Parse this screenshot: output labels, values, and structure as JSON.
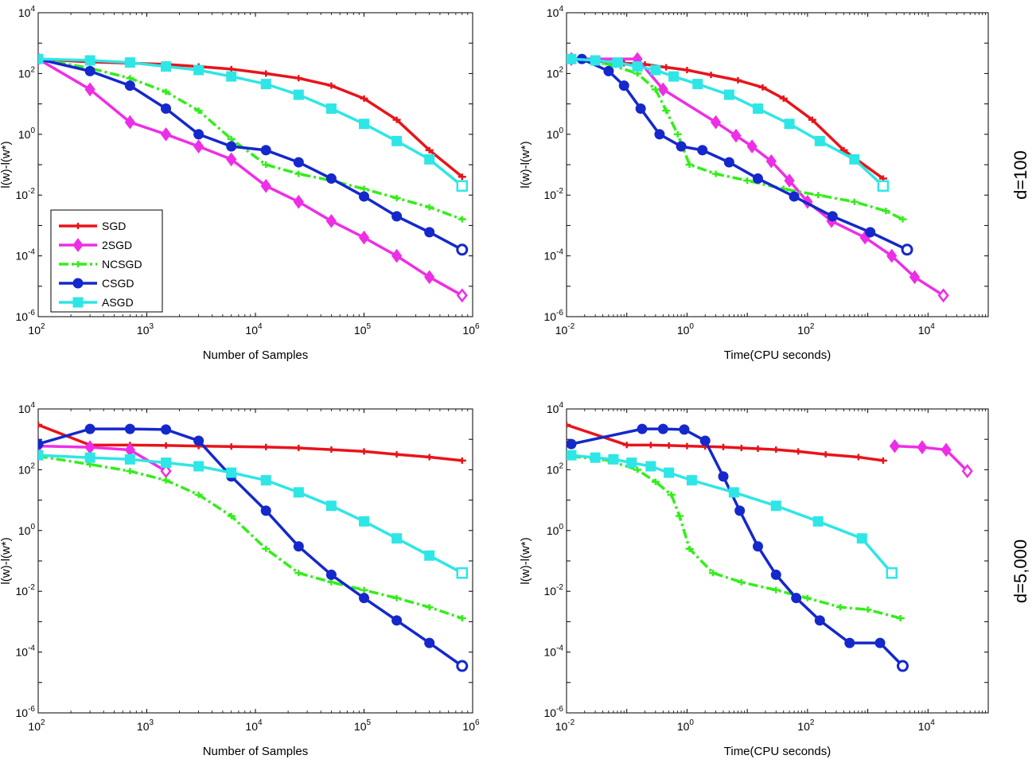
{
  "colors": {
    "SGD": "#e8141a",
    "2SGD": "#ee2ee6",
    "NCSGD": "#33ee1a",
    "CSGD": "#1428cc",
    "ASGD": "#2ee6e6"
  },
  "legend": [
    "SGD",
    "2SGD",
    "NCSGD",
    "CSGD",
    "ASGD"
  ],
  "row_labels": [
    "d=100",
    "d=5,000"
  ],
  "chart_data": [
    {
      "type": "line",
      "panel": "top-left",
      "xlabel": "Number of Samples",
      "ylabel": "l(w)-l(w*)",
      "xscale": "log",
      "yscale": "log",
      "xlim": [
        100,
        1000000
      ],
      "ylim": [
        1e-06,
        10000
      ],
      "legend": "lower-left",
      "series": [
        {
          "name": "SGD",
          "x": [
            100,
            300,
            700,
            1500,
            3000,
            6000,
            12500,
            25000,
            50000,
            100000,
            200000,
            400000,
            800000
          ],
          "y": [
            300,
            240,
            220,
            200,
            170,
            140,
            100,
            70,
            40,
            15,
            3,
            0.3,
            0.04
          ]
        },
        {
          "name": "2SGD",
          "x": [
            100,
            300,
            700,
            1500,
            3000,
            6000,
            12500,
            25000,
            50000,
            100000,
            200000,
            400000,
            800000
          ],
          "y": [
            300,
            30,
            2.5,
            1,
            0.4,
            0.15,
            0.02,
            0.006,
            0.0014,
            0.0004,
            0.0001,
            2e-05,
            5e-06
          ]
        },
        {
          "name": "NCSGD",
          "x": [
            100,
            300,
            700,
            1500,
            3000,
            6000,
            12500,
            25000,
            50000,
            100000,
            200000,
            400000,
            800000
          ],
          "y": [
            300,
            150,
            70,
            25,
            6,
            0.7,
            0.1,
            0.05,
            0.03,
            0.016,
            0.008,
            0.004,
            0.0016
          ]
        },
        {
          "name": "CSGD",
          "x": [
            100,
            300,
            700,
            1500,
            3000,
            6000,
            12500,
            25000,
            50000,
            100000,
            200000,
            400000,
            800000
          ],
          "y": [
            300,
            120,
            40,
            7,
            1,
            0.4,
            0.3,
            0.12,
            0.035,
            0.009,
            0.002,
            0.0006,
            0.00016
          ]
        },
        {
          "name": "ASGD",
          "x": [
            100,
            300,
            700,
            1500,
            3000,
            6000,
            12500,
            25000,
            50000,
            100000,
            200000,
            400000,
            800000
          ],
          "y": [
            300,
            270,
            230,
            170,
            130,
            80,
            45,
            20,
            7,
            2.2,
            0.6,
            0.15,
            0.02
          ]
        }
      ]
    },
    {
      "type": "line",
      "panel": "top-right",
      "xlabel": "Time(CPU seconds)",
      "ylabel": "l(w)-l(w*)",
      "xscale": "log",
      "yscale": "log",
      "xlim": [
        0.01,
        100000
      ],
      "ylim": [
        1e-06,
        10000
      ],
      "series": [
        {
          "name": "SGD",
          "x": [
            0.012,
            0.035,
            0.09,
            0.2,
            0.45,
            1,
            2.5,
            7,
            18,
            40,
            120,
            400,
            1800
          ],
          "y": [
            300,
            250,
            220,
            200,
            160,
            130,
            90,
            60,
            35,
            15,
            3,
            0.3,
            0.035
          ]
        },
        {
          "name": "2SGD",
          "x": [
            0.012,
            0.15,
            0.4,
            3,
            6.5,
            12,
            25,
            50,
            100,
            250,
            900,
            2500,
            6000,
            18000
          ],
          "y": [
            300,
            300,
            30,
            2.5,
            0.9,
            0.4,
            0.13,
            0.03,
            0.006,
            0.0014,
            0.0004,
            0.0001,
            2e-05,
            5e-06
          ]
        },
        {
          "name": "NCSGD",
          "x": [
            0.012,
            0.05,
            0.15,
            0.3,
            0.45,
            0.7,
            1.1,
            3,
            10,
            40,
            150,
            600,
            2000,
            3800
          ],
          "y": [
            300,
            200,
            100,
            30,
            6,
            1,
            0.1,
            0.05,
            0.03,
            0.016,
            0.01,
            0.006,
            0.003,
            0.0016
          ]
        },
        {
          "name": "CSGD",
          "x": [
            0.018,
            0.05,
            0.09,
            0.17,
            0.35,
            0.8,
            1.8,
            5,
            15,
            60,
            260,
            1100,
            4500
          ],
          "y": [
            300,
            120,
            40,
            7,
            1,
            0.4,
            0.3,
            0.12,
            0.035,
            0.009,
            0.002,
            0.0006,
            0.00016
          ]
        },
        {
          "name": "ASGD",
          "x": [
            0.012,
            0.03,
            0.07,
            0.15,
            0.3,
            0.6,
            1.5,
            5,
            15,
            50,
            160,
            600,
            1800
          ],
          "y": [
            300,
            270,
            230,
            170,
            130,
            80,
            45,
            20,
            7,
            2.2,
            0.6,
            0.15,
            0.02
          ]
        }
      ]
    },
    {
      "type": "line",
      "panel": "bottom-left",
      "xlabel": "Number of Samples",
      "ylabel": "l(w)-l(w*)",
      "xscale": "log",
      "yscale": "log",
      "xlim": [
        100,
        1000000
      ],
      "ylim": [
        1e-06,
        10000
      ],
      "series": [
        {
          "name": "SGD",
          "x": [
            100,
            300,
            700,
            1500,
            3000,
            6000,
            12500,
            25000,
            50000,
            100000,
            200000,
            400000,
            800000
          ],
          "y": [
            3000,
            650,
            650,
            630,
            600,
            580,
            560,
            520,
            460,
            400,
            320,
            260,
            200
          ]
        },
        {
          "name": "2SGD",
          "x": [
            100,
            300,
            700,
            1500
          ],
          "y": [
            600,
            550,
            450,
            90
          ]
        },
        {
          "name": "NCSGD",
          "x": [
            100,
            300,
            700,
            1500,
            3000,
            6000,
            12500,
            25000,
            50000,
            100000,
            200000,
            400000,
            800000
          ],
          "y": [
            280,
            150,
            90,
            45,
            15,
            3,
            0.25,
            0.04,
            0.02,
            0.011,
            0.006,
            0.003,
            0.0013
          ]
        },
        {
          "name": "CSGD",
          "x": [
            100,
            300,
            700,
            1500,
            3000,
            6000,
            12500,
            25000,
            50000,
            100000,
            200000,
            400000,
            800000
          ],
          "y": [
            700,
            2200,
            2200,
            2100,
            900,
            60,
            4.5,
            0.3,
            0.035,
            0.006,
            0.0011,
            0.0002,
            3.5e-05
          ]
        },
        {
          "name": "ASGD",
          "x": [
            100,
            300,
            700,
            1500,
            3000,
            6000,
            12500,
            25000,
            50000,
            100000,
            200000,
            400000,
            800000
          ],
          "y": [
            300,
            250,
            220,
            170,
            130,
            80,
            45,
            18,
            6.5,
            2,
            0.55,
            0.15,
            0.04
          ]
        }
      ]
    },
    {
      "type": "line",
      "panel": "bottom-right",
      "xlabel": "Time(CPU seconds)",
      "ylabel": "l(w)-l(w*)",
      "xscale": "log",
      "yscale": "log",
      "xlim": [
        0.01,
        100000
      ],
      "ylim": [
        1e-06,
        10000
      ],
      "series": [
        {
          "name": "SGD",
          "x": [
            0.01,
            0.1,
            0.25,
            0.5,
            1,
            2,
            4,
            8,
            15,
            30,
            70,
            200,
            700,
            1800
          ],
          "y": [
            3000,
            650,
            650,
            630,
            600,
            580,
            560,
            520,
            490,
            460,
            400,
            320,
            260,
            200
          ]
        },
        {
          "name": "2SGD",
          "x": [
            2800,
            8000,
            20000,
            45000
          ],
          "y": [
            600,
            550,
            450,
            90
          ]
        },
        {
          "name": "NCSGD",
          "x": [
            0.012,
            0.05,
            0.15,
            0.3,
            0.55,
            0.75,
            1.1,
            2.7,
            8,
            30,
            100,
            350,
            1000,
            3500
          ],
          "y": [
            280,
            200,
            100,
            40,
            15,
            3,
            0.25,
            0.04,
            0.02,
            0.011,
            0.006,
            0.003,
            0.0025,
            0.0013
          ]
        },
        {
          "name": "CSGD",
          "x": [
            0.012,
            0.18,
            0.4,
            0.9,
            2,
            4,
            7.5,
            15,
            30,
            65,
            160,
            500,
            1600,
            3800
          ],
          "y": [
            700,
            2200,
            2200,
            2100,
            900,
            60,
            4.5,
            0.3,
            0.035,
            0.006,
            0.0011,
            0.0002,
            0.0002,
            3.5e-05
          ]
        },
        {
          "name": "ASGD",
          "x": [
            0.012,
            0.03,
            0.06,
            0.12,
            0.25,
            0.5,
            1.2,
            6,
            30,
            150,
            800,
            2500
          ],
          "y": [
            300,
            250,
            220,
            170,
            130,
            80,
            45,
            18,
            6.5,
            2,
            0.55,
            0.04
          ]
        }
      ]
    }
  ]
}
